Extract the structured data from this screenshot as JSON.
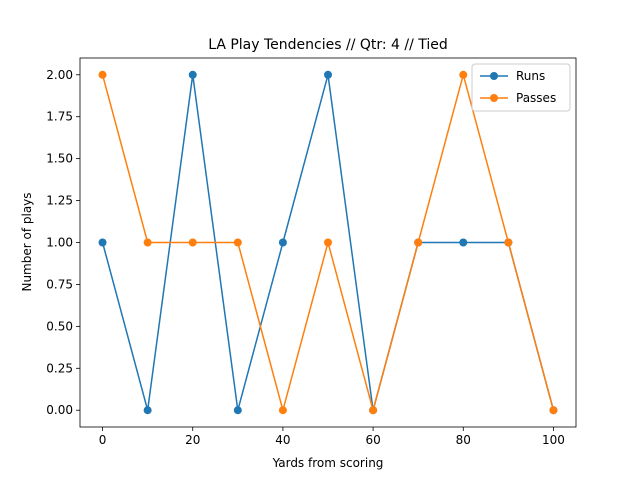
{
  "chart_data": {
    "type": "line",
    "title": "LA Play Tendencies // Qtr: 4 // Tied",
    "xlabel": "Yards from scoring",
    "ylabel": "Number of plays",
    "x": [
      0,
      10,
      20,
      30,
      40,
      50,
      60,
      70,
      80,
      90,
      100
    ],
    "xlim": [
      -5,
      105
    ],
    "ylim": [
      -0.1,
      2.1
    ],
    "xticks": [
      0,
      20,
      40,
      60,
      80,
      100
    ],
    "yticks": [
      0.0,
      0.25,
      0.5,
      0.75,
      1.0,
      1.25,
      1.5,
      1.75,
      2.0
    ],
    "ytick_labels": [
      "0.00",
      "0.25",
      "0.50",
      "0.75",
      "1.00",
      "1.25",
      "1.50",
      "1.75",
      "2.00"
    ],
    "grid": false,
    "legend_position": "top-right",
    "series": [
      {
        "name": "Runs",
        "color": "#1f77b4",
        "values": [
          1,
          0,
          2,
          0,
          1,
          2,
          0,
          1,
          1,
          1,
          0
        ]
      },
      {
        "name": "Passes",
        "color": "#ff7f0e",
        "values": [
          2,
          1,
          1,
          1,
          0,
          1,
          0,
          1,
          2,
          1,
          0
        ]
      }
    ]
  }
}
